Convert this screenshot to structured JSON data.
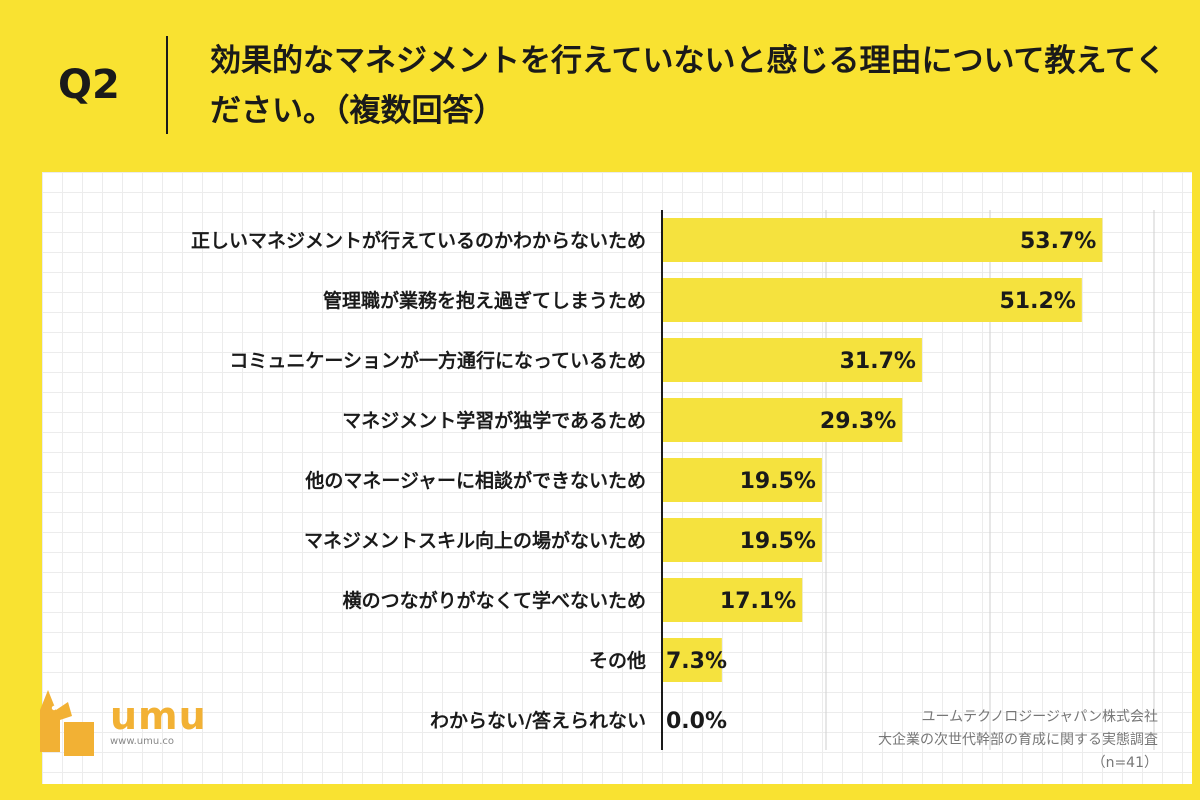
{
  "header": {
    "question_label": "Q2",
    "question_text": "効果的なマネジメントを行えていないと感じる理由について教えてください。（複数回答）"
  },
  "logo": {
    "text": "umu",
    "url": "www.umu.co"
  },
  "source": {
    "company": "ユームテクノロジージャパン株式会社",
    "survey": "大企業の次世代幹部の育成に関する実態調査",
    "sample": "（n=41）"
  },
  "colors": {
    "background": "#f9e231",
    "bar": "#f5e23e",
    "logo": "#f2b134"
  },
  "chart_data": {
    "type": "bar",
    "orientation": "horizontal",
    "title": "",
    "xlabel": "",
    "ylabel": "",
    "xlim": [
      0,
      60
    ],
    "grid": true,
    "value_suffix": "%",
    "categories": [
      "正しいマネジメントが行えているのかわからないため",
      "管理職が業務を抱え過ぎてしまうため",
      "コミュニケーションが一方通行になっているため",
      "マネジメント学習が独学であるため",
      "他のマネージャーに相談ができないため",
      "マネジメントスキル向上の場がないため",
      "横のつながりがなくて学べないため",
      "その他",
      "わからない/答えられない"
    ],
    "values": [
      53.7,
      51.2,
      31.7,
      29.3,
      19.5,
      19.5,
      17.1,
      7.3,
      0.0
    ],
    "value_labels": [
      "53.7%",
      "51.2%",
      "31.7%",
      "29.3%",
      "19.5%",
      "19.5%",
      "17.1%",
      "7.3%",
      "0.0%"
    ]
  }
}
